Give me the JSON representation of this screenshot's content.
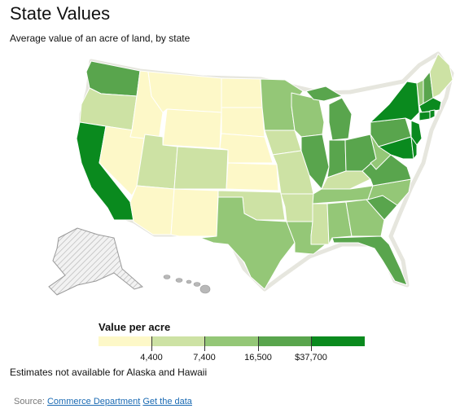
{
  "title": "State Values",
  "subtitle": "Average value of an acre of land, by state",
  "legend": {
    "title": "Value per acre",
    "ticks": [
      "4,400",
      "7,400",
      "16,500",
      "$37,700"
    ],
    "colors": [
      "#fdf8c8",
      "#cde2a4",
      "#94c777",
      "#59a54d",
      "#0a8a1e"
    ]
  },
  "note": "Estimates not available for Alaska and Hawaii",
  "source": {
    "label": "Source:",
    "link1": "Commerce Department",
    "link2": "Get the data"
  },
  "map_data": {
    "colors": {
      "c1": "#fdf8c8",
      "c2": "#cde2a4",
      "c3": "#94c777",
      "c4": "#59a54d",
      "c5": "#0a8a1e",
      "na": "#ececec",
      "border": "#ffffff",
      "outline": "#d4d4c4"
    }
  }
}
